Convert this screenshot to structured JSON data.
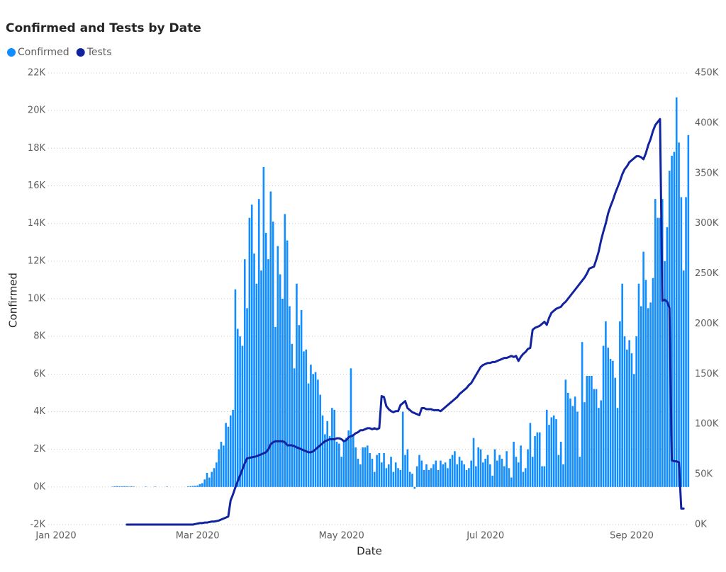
{
  "chart_data": {
    "type": "bar_line",
    "title": "Confirmed and Tests by Date",
    "x_label": "Date",
    "y_label": "Confirmed",
    "grid": true,
    "legend": "top-left",
    "categories": [
      "Jan 2020",
      null,
      null,
      null,
      null,
      null,
      null,
      null,
      null,
      null,
      null,
      null,
      null,
      null,
      null,
      null,
      null,
      null,
      null,
      null,
      null,
      null,
      null,
      null,
      null,
      null,
      null,
      null,
      null,
      null,
      null,
      null,
      null,
      null,
      null,
      null,
      null,
      null,
      null,
      null,
      null,
      null,
      null,
      null,
      null,
      null,
      null,
      null,
      null,
      null,
      null,
      null,
      null,
      null,
      null,
      null,
      null,
      null,
      null,
      null,
      "Mar 2020",
      null,
      null,
      null,
      null,
      null,
      null,
      null,
      null,
      null,
      null,
      null,
      null,
      null,
      null,
      null,
      null,
      null,
      null,
      null,
      null,
      null,
      null,
      null,
      null,
      null,
      null,
      null,
      null,
      null,
      null,
      null,
      null,
      null,
      null,
      null,
      null,
      null,
      null,
      null,
      null,
      null,
      null,
      null,
      null,
      null,
      null,
      null,
      null,
      null,
      null,
      null,
      null,
      null,
      null,
      null,
      null,
      null,
      null,
      null,
      null,
      "May 2020",
      null,
      null,
      null,
      null,
      null,
      null,
      null,
      null,
      null,
      null,
      null,
      null,
      null,
      null,
      null,
      null,
      null,
      null,
      null,
      null,
      null,
      null,
      null,
      null,
      null,
      null,
      null,
      null,
      null,
      null,
      null,
      null,
      null,
      null,
      null,
      null,
      null,
      null,
      null,
      null,
      null,
      null,
      null,
      null,
      null,
      null,
      null,
      null,
      null,
      null,
      null,
      null,
      null,
      null,
      null,
      null,
      null,
      null,
      null,
      null,
      "Jul 2020",
      null,
      null,
      null,
      null,
      null,
      null,
      null,
      null,
      null,
      null,
      null,
      null,
      null,
      null,
      null,
      null,
      null,
      null,
      null,
      null,
      null,
      null,
      null,
      null,
      null,
      null,
      null,
      null,
      null,
      null,
      null,
      null,
      null,
      null,
      null,
      null,
      null,
      null,
      null,
      null,
      null,
      null,
      null,
      null,
      null,
      null,
      null,
      null,
      null,
      null,
      null,
      null,
      null,
      null,
      null,
      null,
      null,
      null,
      null,
      null,
      null,
      "Sep 2020",
      null,
      null,
      null,
      null,
      null,
      null,
      null,
      null,
      null,
      null,
      null,
      null,
      null,
      null,
      null,
      null,
      null,
      null,
      null,
      null,
      null,
      null,
      null,
      null
    ],
    "series": [
      {
        "name": "Confirmed",
        "type": "bar",
        "axis": "y",
        "color": "#118DFF",
        "values": [
          null,
          null,
          null,
          null,
          null,
          null,
          null,
          null,
          null,
          null,
          null,
          null,
          null,
          null,
          null,
          null,
          null,
          null,
          null,
          null,
          null,
          null,
          null,
          null,
          20,
          30,
          40,
          30,
          30,
          40,
          30,
          20,
          30,
          20,
          0,
          0,
          0,
          0,
          20,
          0,
          0,
          0,
          20,
          0,
          0,
          0,
          0,
          20,
          0,
          0,
          0,
          0,
          0,
          0,
          0,
          0,
          30,
          40,
          50,
          60,
          80,
          150,
          200,
          400,
          750,
          500,
          800,
          1000,
          1300,
          2000,
          2400,
          2200,
          3400,
          3200,
          3800,
          4100,
          10500,
          8400,
          8000,
          7500,
          12100,
          9500,
          14300,
          15000,
          12400,
          10800,
          15300,
          11500,
          17000,
          13500,
          12100,
          15700,
          14100,
          8500,
          12800,
          11300,
          10000,
          14500,
          13100,
          9600,
          7600,
          6300,
          10800,
          8600,
          9400,
          7200,
          7300,
          5500,
          6500,
          6000,
          6100,
          5700,
          4900,
          3800,
          2800,
          3500,
          2700,
          4200,
          4100,
          2400,
          2300,
          1600,
          2500,
          2600,
          3000,
          6300,
          2800,
          2100,
          1500,
          1200,
          2100,
          2100,
          2200,
          1800,
          1500,
          800,
          1700,
          1800,
          1300,
          1800,
          1000,
          1200,
          1600,
          800,
          1300,
          1000,
          900,
          4000,
          1700,
          2000,
          800,
          700,
          -100,
          1100,
          1700,
          1400,
          900,
          1200,
          900,
          1000,
          1200,
          1400,
          900,
          1400,
          1200,
          1300,
          1000,
          1500,
          1700,
          1900,
          1200,
          1600,
          1400,
          1200,
          900,
          1000,
          1400,
          2600,
          1100,
          2100,
          2000,
          1300,
          1500,
          1700,
          1200,
          600,
          2000,
          1400,
          1700,
          1500,
          1100,
          1900,
          1000,
          500,
          2400,
          1600,
          1300,
          2200,
          800,
          1000,
          2000,
          3400,
          1600,
          2700,
          2900,
          2900,
          1100,
          1100,
          4100,
          3300,
          3700,
          3800,
          3600,
          1700,
          2400,
          1200,
          5700,
          5000,
          4700,
          4300,
          4800,
          4000,
          1600,
          7700,
          4500,
          5900,
          5900,
          5900,
          5200,
          5200,
          4200,
          4600,
          7500,
          8800,
          7400,
          6800,
          6700,
          5800,
          4200,
          8800,
          10800,
          8000,
          7300,
          7800,
          7100,
          6000,
          8000,
          10800,
          9600,
          12500,
          11000,
          9500,
          9800,
          11100,
          15300,
          14300,
          14300,
          15300,
          12000,
          13800,
          16800,
          17600,
          17800,
          20700,
          18300,
          15400,
          11500,
          15400,
          18700
        ]
      },
      {
        "name": "Tests",
        "type": "line",
        "axis": "y2",
        "color": "#12239E",
        "values": [
          null,
          null,
          null,
          null,
          null,
          null,
          null,
          null,
          null,
          null,
          null,
          null,
          null,
          null,
          null,
          null,
          null,
          null,
          null,
          null,
          null,
          null,
          null,
          null,
          null,
          null,
          null,
          null,
          null,
          null,
          0,
          0,
          0,
          0,
          0,
          0,
          0,
          0,
          0,
          0,
          0,
          0,
          0,
          0,
          0,
          0,
          0,
          0,
          0,
          0,
          0,
          0,
          0,
          0,
          0,
          0,
          0,
          0,
          0,
          500,
          1000,
          1500,
          1500,
          2000,
          2000,
          2500,
          3000,
          3000,
          3500,
          4000,
          5000,
          6000,
          7000,
          8000,
          24000,
          30000,
          37000,
          43000,
          49000,
          55000,
          61000,
          66000,
          66500,
          67000,
          67500,
          68000,
          69000,
          70000,
          71000,
          72000,
          75000,
          80000,
          82000,
          83000,
          83000,
          83000,
          83000,
          82000,
          79000,
          79000,
          79000,
          78000,
          77000,
          76000,
          75000,
          74000,
          73000,
          72000,
          72000,
          73000,
          75000,
          77000,
          79000,
          81000,
          83000,
          84000,
          85000,
          85000,
          85000,
          86000,
          86000,
          85000,
          83000,
          84000,
          87000,
          88000,
          89000,
          91000,
          92000,
          94000,
          94000,
          95000,
          96000,
          96000,
          95000,
          96000,
          95000,
          96000,
          128000,
          127000,
          118000,
          115000,
          113000,
          112000,
          113000,
          113000,
          119000,
          121000,
          123000,
          116000,
          114000,
          112000,
          111000,
          110000,
          109000,
          116000,
          116000,
          115000,
          115000,
          115000,
          114000,
          114000,
          114000,
          113000,
          115000,
          117000,
          119000,
          121000,
          123000,
          125000,
          127000,
          130000,
          132000,
          134000,
          136000,
          139000,
          141000,
          145000,
          149000,
          153000,
          157000,
          159000,
          160000,
          161000,
          161000,
          162000,
          162000,
          163000,
          164000,
          165000,
          166000,
          166000,
          167000,
          168000,
          167000,
          168000,
          163000,
          167000,
          170000,
          172000,
          175000,
          176000,
          194000,
          196000,
          197000,
          198000,
          200000,
          202000,
          199000,
          206000,
          211000,
          213000,
          215000,
          216000,
          217000,
          220000,
          222000,
          225000,
          228000,
          231000,
          234000,
          237000,
          240000,
          243000,
          246000,
          250000,
          255000,
          256000,
          257000,
          264000,
          272000,
          283000,
          292000,
          300000,
          310000,
          317000,
          323000,
          330000,
          336000,
          342000,
          349000,
          354000,
          357000,
          361000,
          363000,
          365000,
          367000,
          367000,
          366000,
          364000,
          370000,
          378000,
          384000,
          392000,
          398000,
          401000,
          404000,
          223000,
          224000,
          222000,
          216000,
          64000,
          63000,
          63000,
          62000,
          16000,
          16000,
          null,
          null
        ]
      }
    ],
    "ylim": [
      -2000,
      22000
    ],
    "yticks": [
      {
        "value": -2000,
        "label": "-2K"
      },
      {
        "value": 0,
        "label": "0K"
      },
      {
        "value": 2000,
        "label": "2K"
      },
      {
        "value": 4000,
        "label": "4K"
      },
      {
        "value": 6000,
        "label": "6K"
      },
      {
        "value": 8000,
        "label": "8K"
      },
      {
        "value": 10000,
        "label": "10K"
      },
      {
        "value": 12000,
        "label": "12K"
      },
      {
        "value": 14000,
        "label": "14K"
      },
      {
        "value": 16000,
        "label": "16K"
      },
      {
        "value": 18000,
        "label": "18K"
      },
      {
        "value": 20000,
        "label": "20K"
      },
      {
        "value": 22000,
        "label": "22K"
      }
    ],
    "y2lim": [
      0,
      450000
    ],
    "y2ticks": [
      {
        "value": 0,
        "label": "0K"
      },
      {
        "value": 50000,
        "label": "50K"
      },
      {
        "value": 100000,
        "label": "100K"
      },
      {
        "value": 150000,
        "label": "150K"
      },
      {
        "value": 200000,
        "label": "200K"
      },
      {
        "value": 250000,
        "label": "250K"
      },
      {
        "value": 300000,
        "label": "300K"
      },
      {
        "value": 350000,
        "label": "350K"
      },
      {
        "value": 400000,
        "label": "400K"
      },
      {
        "value": 450000,
        "label": "450K"
      }
    ]
  }
}
